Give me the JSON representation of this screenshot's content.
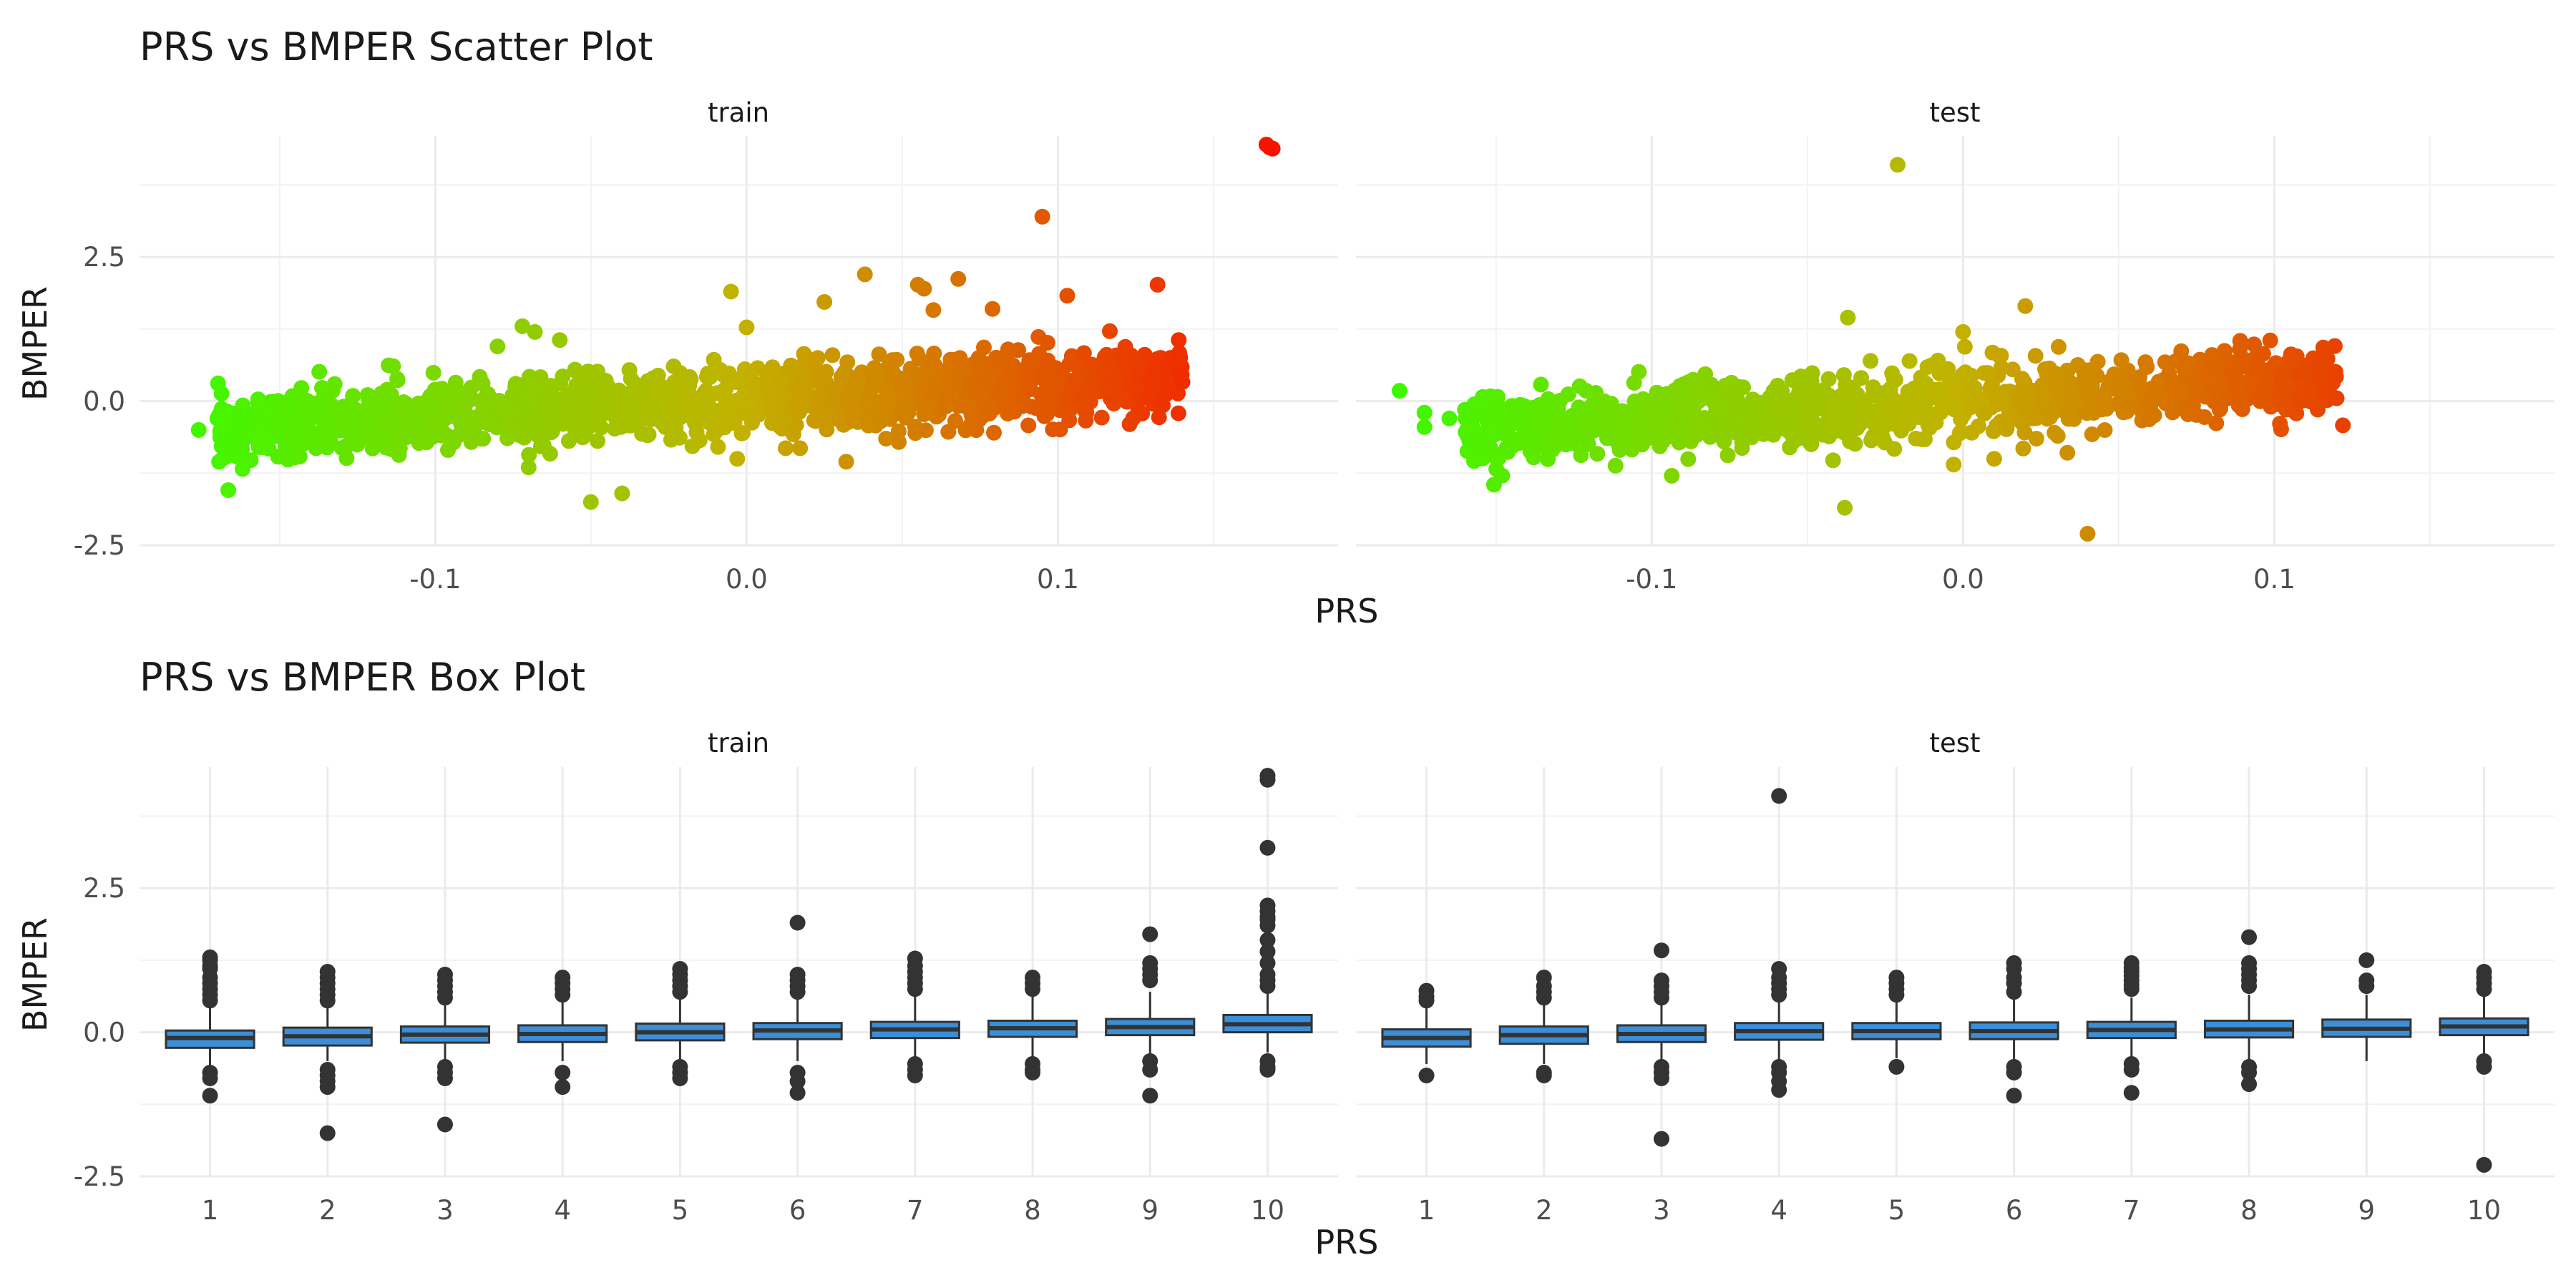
{
  "chart_data": [
    {
      "type": "scatter",
      "title": "PRS vs BMPER Scatter Plot",
      "xlabel": "PRS",
      "ylabel": "BMPER",
      "xlim": [
        -0.195,
        0.19
      ],
      "ylim": [
        -2.5,
        4.6
      ],
      "x_ticks": [
        -0.1,
        0.0,
        0.1
      ],
      "x_tick_labels": [
        "-0.1",
        "0.0",
        "0.1"
      ],
      "y_ticks": [
        -2.5,
        0.0,
        2.5
      ],
      "y_tick_labels": [
        "-2.5",
        "0.0",
        "2.5"
      ],
      "color_scale": {
        "low": "#33ff00",
        "mid": "#c2b200",
        "high": "#ff0000"
      },
      "grid": true,
      "legend": "none",
      "panels": [
        {
          "strip": "train",
          "cloud": {
            "x_range": [
              -0.17,
              0.14
            ],
            "slope": 3.0,
            "spread": 0.3,
            "count": 1400
          },
          "points": [
            {
              "x": 0.167,
              "y": 4.45
            },
            {
              "x": 0.168,
              "y": 4.4
            },
            {
              "x": 0.169,
              "y": 4.38
            },
            {
              "x": 0.095,
              "y": 3.2
            },
            {
              "x": 0.132,
              "y": 2.02
            },
            {
              "x": 0.103,
              "y": 1.83
            },
            {
              "x": 0.038,
              "y": 2.2
            },
            {
              "x": 0.068,
              "y": 2.12
            },
            {
              "x": 0.057,
              "y": 1.95
            },
            {
              "x": 0.055,
              "y": 2.02
            },
            {
              "x": 0.025,
              "y": 1.72
            },
            {
              "x": 0.06,
              "y": 1.58
            },
            {
              "x": 0.079,
              "y": 1.6
            },
            {
              "x": -0.005,
              "y": 1.9
            },
            {
              "x": 0.0,
              "y": 1.28
            },
            {
              "x": -0.072,
              "y": 1.3
            },
            {
              "x": -0.068,
              "y": 1.2
            },
            {
              "x": -0.06,
              "y": 1.06
            },
            {
              "x": -0.08,
              "y": 0.95
            },
            {
              "x": -0.115,
              "y": 0.62
            },
            {
              "x": -0.05,
              "y": -1.75
            },
            {
              "x": -0.04,
              "y": -1.6
            },
            {
              "x": -0.07,
              "y": -1.15
            },
            {
              "x": 0.032,
              "y": -1.05
            },
            {
              "x": -0.003,
              "y": -1.0
            },
            {
              "x": -0.176,
              "y": -0.5
            },
            {
              "x": -0.17,
              "y": -0.3
            },
            {
              "x": -0.165,
              "y": -0.75
            },
            {
              "x": 0.14,
              "y": 0.33
            },
            {
              "x": 0.129,
              "y": 0.05
            },
            {
              "x": 0.121,
              "y": 0.45
            },
            {
              "x": 0.118,
              "y": 0.38
            }
          ]
        },
        {
          "strip": "test",
          "cloud": {
            "x_range": [
              -0.16,
              0.12
            ],
            "slope": 3.0,
            "spread": 0.3,
            "count": 1200
          },
          "points": [
            {
              "x": -0.021,
              "y": 4.1
            },
            {
              "x": 0.02,
              "y": 1.65
            },
            {
              "x": -0.037,
              "y": 1.45
            },
            {
              "x": 0.0,
              "y": 1.2
            },
            {
              "x": -0.038,
              "y": -1.85
            },
            {
              "x": 0.04,
              "y": -2.3
            },
            {
              "x": -0.003,
              "y": -1.1
            },
            {
              "x": 0.01,
              "y": -1.0
            },
            {
              "x": -0.181,
              "y": 0.18
            },
            {
              "x": -0.173,
              "y": -0.2
            },
            {
              "x": -0.173,
              "y": -0.45
            },
            {
              "x": -0.165,
              "y": -0.3
            },
            {
              "x": -0.16,
              "y": -0.15
            },
            {
              "x": -0.157,
              "y": -0.5
            },
            {
              "x": -0.15,
              "y": -0.2
            },
            {
              "x": 0.122,
              "y": -0.42
            },
            {
              "x": 0.12,
              "y": 0.05
            },
            {
              "x": 0.111,
              "y": 0.15
            },
            {
              "x": 0.118,
              "y": 0.1
            },
            {
              "x": 0.103,
              "y": 0.5
            },
            {
              "x": 0.08,
              "y": 0.8
            }
          ]
        }
      ]
    },
    {
      "type": "box",
      "title": "PRS vs BMPER Box Plot",
      "xlabel": "PRS",
      "ylabel": "BMPER",
      "categories": [
        "1",
        "2",
        "3",
        "4",
        "5",
        "6",
        "7",
        "8",
        "9",
        "10"
      ],
      "ylim": [
        -2.5,
        4.6
      ],
      "y_ticks": [
        -2.5,
        0.0,
        2.5
      ],
      "y_tick_labels": [
        "-2.5",
        "0.0",
        "2.5"
      ],
      "box_fill": "#3b8fd9",
      "box_stroke": "#333333",
      "grid": true,
      "panels": [
        {
          "strip": "train",
          "boxes": [
            {
              "q1": -0.27,
              "median": -0.1,
              "q3": 0.03,
              "wl": -0.6,
              "wh": 0.45,
              "outliers": [
                1.3,
                1.25,
                1.15,
                1.1,
                0.95,
                0.85,
                0.75,
                0.65,
                0.55,
                -0.7,
                -0.8,
                -1.1
              ]
            },
            {
              "q1": -0.23,
              "median": -0.07,
              "q3": 0.08,
              "wl": -0.5,
              "wh": 0.5,
              "outliers": [
                1.05,
                0.95,
                0.85,
                0.75,
                0.65,
                0.55,
                -0.65,
                -0.75,
                -0.85,
                -0.95,
                -1.75
              ]
            },
            {
              "q1": -0.18,
              "median": -0.04,
              "q3": 0.1,
              "wl": -0.5,
              "wh": 0.5,
              "outliers": [
                1.0,
                0.9,
                0.8,
                0.7,
                0.6,
                -0.6,
                -0.7,
                -0.8,
                -1.6
              ]
            },
            {
              "q1": -0.17,
              "median": -0.03,
              "q3": 0.12,
              "wl": -0.5,
              "wh": 0.55,
              "outliers": [
                0.95,
                0.85,
                0.75,
                0.65,
                -0.7,
                -0.95
              ]
            },
            {
              "q1": -0.14,
              "median": 0.0,
              "q3": 0.15,
              "wl": -0.5,
              "wh": 0.6,
              "outliers": [
                1.1,
                1.0,
                0.9,
                0.8,
                0.7,
                -0.6,
                -0.7,
                -0.8
              ]
            },
            {
              "q1": -0.12,
              "median": 0.03,
              "q3": 0.16,
              "wl": -0.5,
              "wh": 0.6,
              "outliers": [
                1.9,
                1.0,
                0.9,
                0.8,
                0.7,
                -0.7,
                -0.85,
                -1.05
              ]
            },
            {
              "q1": -0.1,
              "median": 0.05,
              "q3": 0.18,
              "wl": -0.45,
              "wh": 0.65,
              "outliers": [
                1.28,
                1.15,
                1.05,
                0.95,
                0.85,
                0.75,
                -0.55,
                -0.65,
                -0.75
              ]
            },
            {
              "q1": -0.08,
              "median": 0.07,
              "q3": 0.2,
              "wl": -0.45,
              "wh": 0.65,
              "outliers": [
                0.95,
                0.85,
                0.75,
                -0.55,
                -0.65,
                -0.7
              ]
            },
            {
              "q1": -0.05,
              "median": 0.09,
              "q3": 0.23,
              "wl": -0.4,
              "wh": 0.7,
              "outliers": [
                1.7,
                1.2,
                1.1,
                1.0,
                0.9,
                -0.5,
                -0.65,
                -1.1
              ]
            },
            {
              "q1": 0.0,
              "median": 0.14,
              "q3": 0.3,
              "wl": -0.35,
              "wh": 0.7,
              "outliers": [
                4.45,
                4.38,
                3.2,
                2.2,
                2.1,
                2.0,
                1.95,
                1.85,
                1.6,
                1.4,
                1.2,
                1.0,
                0.9,
                0.8,
                -0.5,
                -0.6,
                -0.65
              ]
            }
          ]
        },
        {
          "strip": "test",
          "boxes": [
            {
              "q1": -0.25,
              "median": -0.1,
              "q3": 0.05,
              "wl": -0.55,
              "wh": 0.45,
              "outliers": [
                0.72,
                0.62,
                0.55,
                -0.75
              ]
            },
            {
              "q1": -0.2,
              "median": -0.05,
              "q3": 0.1,
              "wl": -0.55,
              "wh": 0.5,
              "outliers": [
                0.95,
                0.8,
                0.7,
                0.6,
                -0.7,
                -0.75
              ]
            },
            {
              "q1": -0.17,
              "median": -0.03,
              "q3": 0.12,
              "wl": -0.55,
              "wh": 0.55,
              "outliers": [
                1.42,
                0.9,
                0.8,
                0.7,
                0.6,
                -0.6,
                -0.7,
                -0.8,
                -1.85
              ]
            },
            {
              "q1": -0.13,
              "median": 0.02,
              "q3": 0.16,
              "wl": -0.5,
              "wh": 0.6,
              "outliers": [
                4.1,
                1.1,
                0.95,
                0.85,
                0.75,
                0.65,
                -0.6,
                -0.7,
                -0.85,
                -1.0
              ]
            },
            {
              "q1": -0.12,
              "median": 0.02,
              "q3": 0.16,
              "wl": -0.45,
              "wh": 0.55,
              "outliers": [
                0.95,
                0.85,
                0.75,
                0.65,
                -0.6
              ]
            },
            {
              "q1": -0.12,
              "median": 0.02,
              "q3": 0.17,
              "wl": -0.5,
              "wh": 0.6,
              "outliers": [
                1.2,
                1.1,
                0.95,
                0.85,
                0.7,
                -0.6,
                -0.7,
                -1.1
              ]
            },
            {
              "q1": -0.1,
              "median": 0.04,
              "q3": 0.18,
              "wl": -0.45,
              "wh": 0.6,
              "outliers": [
                1.2,
                1.12,
                1.05,
                0.98,
                0.9,
                0.82,
                0.75,
                -0.55,
                -0.65,
                -1.05
              ]
            },
            {
              "q1": -0.09,
              "median": 0.05,
              "q3": 0.2,
              "wl": -0.5,
              "wh": 0.65,
              "outliers": [
                1.65,
                1.2,
                1.1,
                1.0,
                0.9,
                0.8,
                -0.6,
                -0.7,
                -0.9
              ]
            },
            {
              "q1": -0.08,
              "median": 0.06,
              "q3": 0.22,
              "wl": -0.5,
              "wh": 0.65,
              "outliers": [
                1.25,
                0.9,
                0.8
              ]
            },
            {
              "q1": -0.05,
              "median": 0.1,
              "q3": 0.24,
              "wl": -0.4,
              "wh": 0.65,
              "outliers": [
                1.05,
                0.95,
                0.85,
                0.75,
                -0.5,
                -0.6,
                -2.3
              ]
            }
          ]
        }
      ]
    }
  ]
}
